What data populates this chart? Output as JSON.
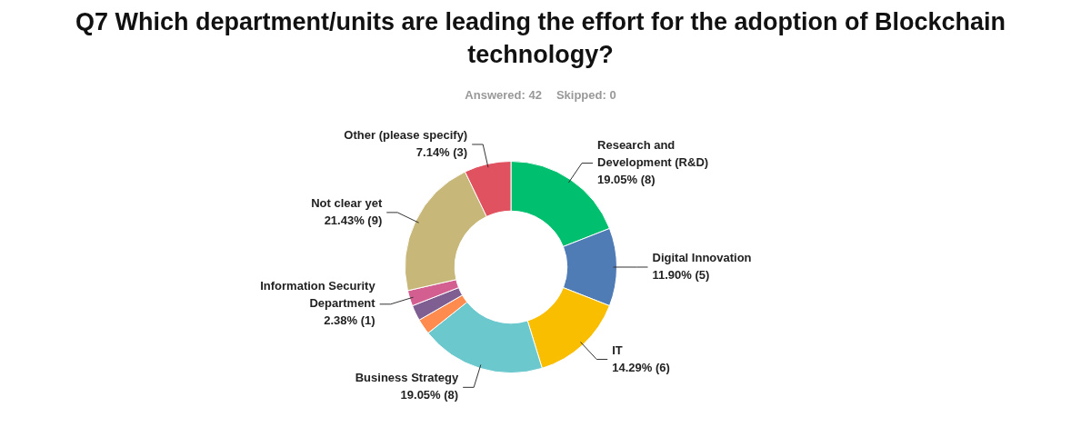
{
  "chart_data": {
    "type": "donut",
    "title": "Q7 Which department/units are leading the effort for the adoption of Blockchain technology?",
    "annotations": [
      "Answered: 42",
      "Skipped: 0"
    ],
    "categories": [
      "Research and Development (R&D)",
      "Digital Innovation",
      "IT",
      "Business Strategy",
      null,
      null,
      "Information Security Department",
      "Not clear yet",
      "Other (please specify)"
    ],
    "values": [
      19.05,
      11.9,
      14.29,
      19.05,
      2.38,
      2.38,
      2.38,
      21.43,
      7.14
    ],
    "value_labels": [
      "19.05% (8)",
      "11.90% (5)",
      "14.29% (6)",
      "19.05% (8)",
      null,
      null,
      "2.38% (1)",
      "21.43% (9)",
      "7.14% (3)"
    ],
    "colors": [
      "#00bf6f",
      "#507cb6",
      "#f9be00",
      "#6bc8cd",
      "#ff8b4f",
      "#7f5f92",
      "#d25f90",
      "#c7b879",
      "#e05260"
    ],
    "legend": false
  }
}
